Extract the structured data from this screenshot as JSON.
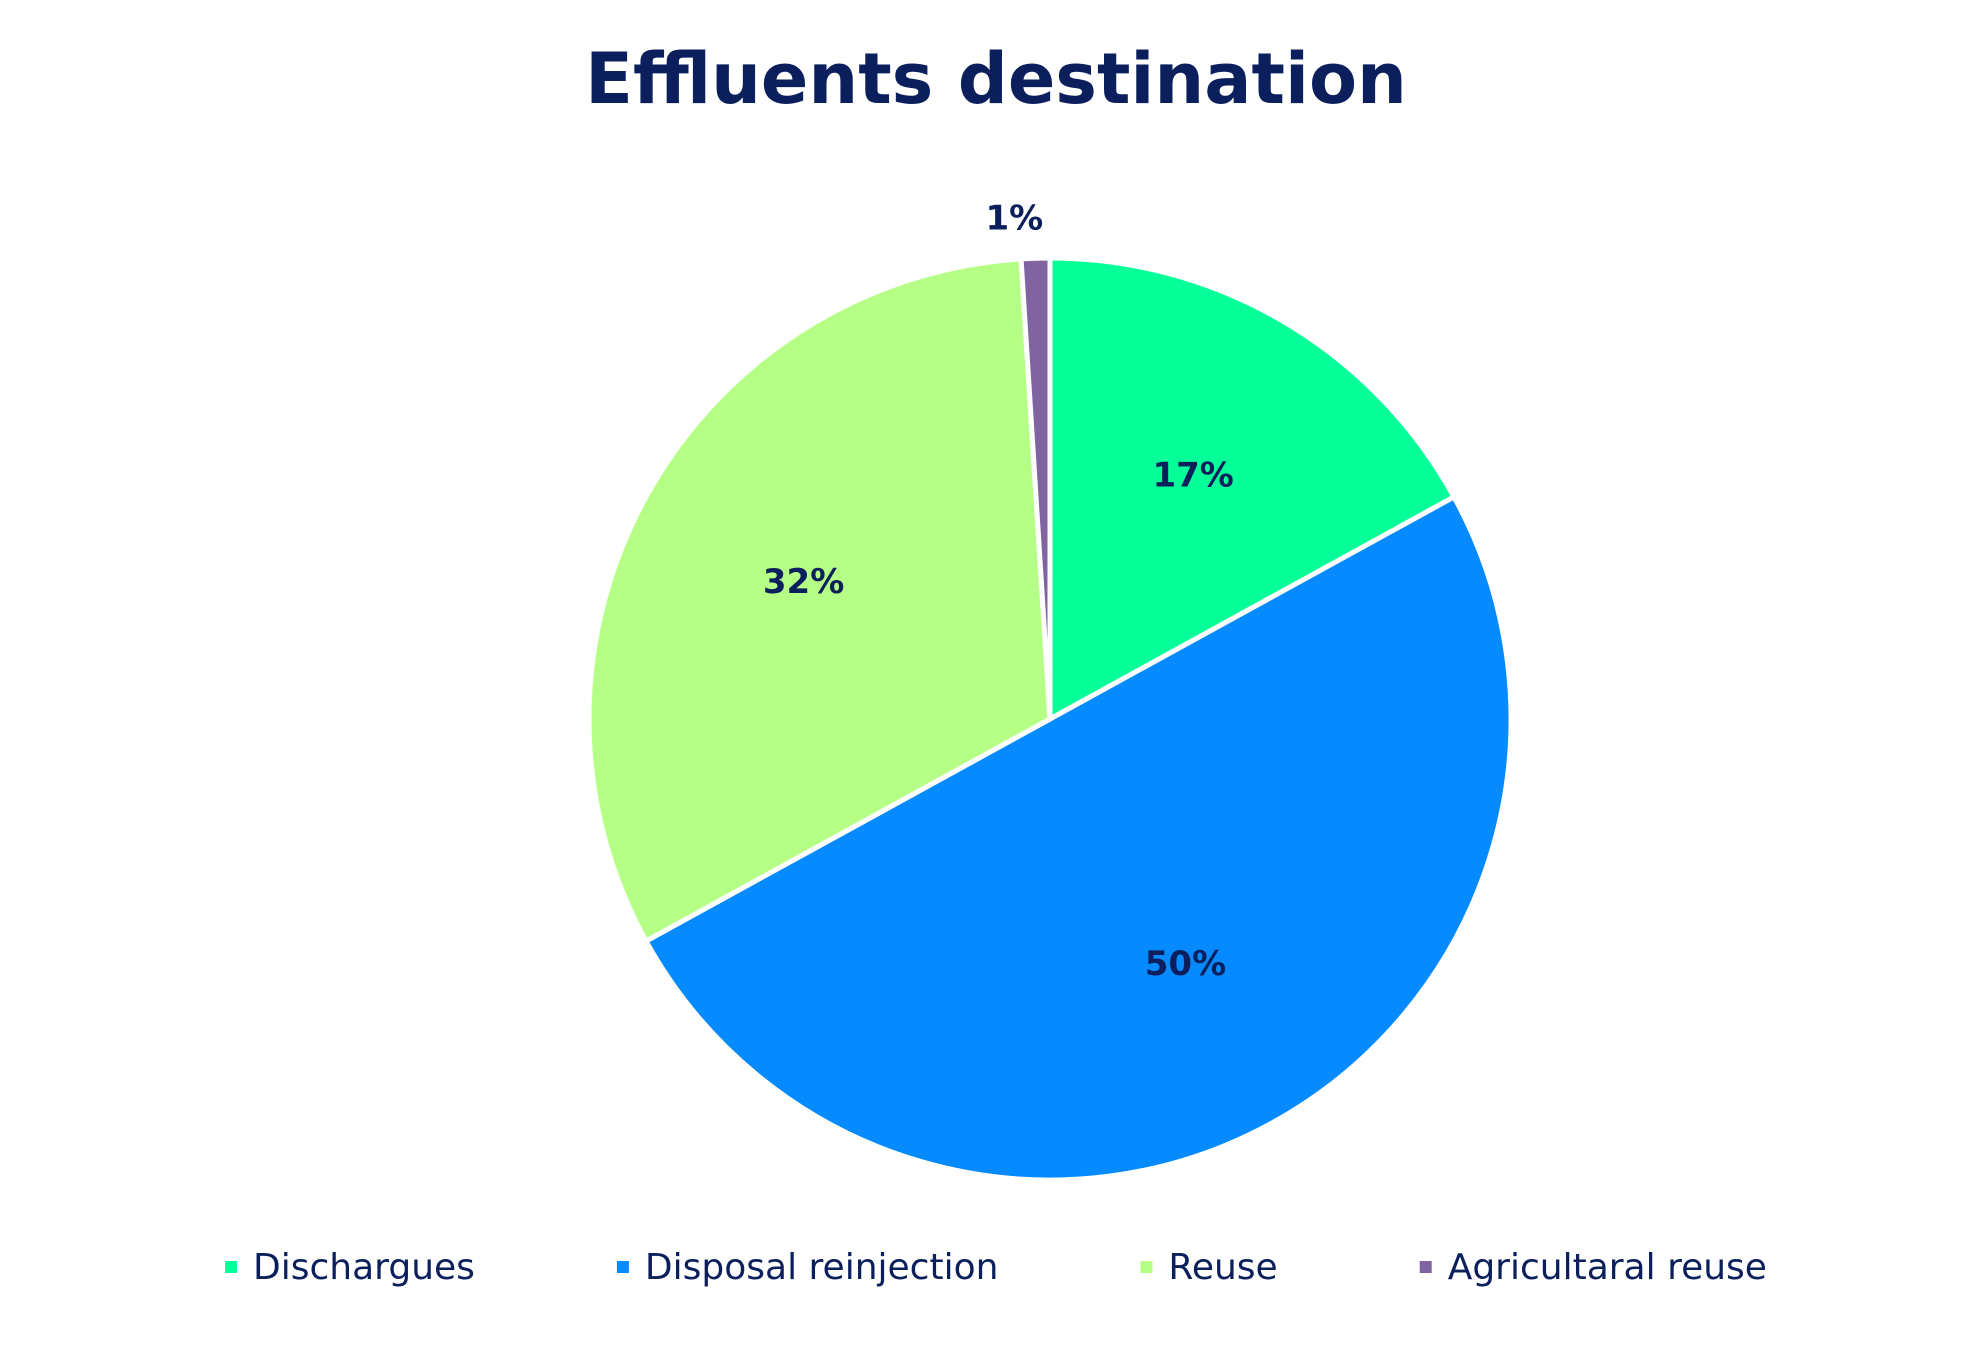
{
  "chart_data": {
    "type": "pie",
    "title": "Effluents destination",
    "categories": [
      "Dischargues",
      "Disposal reinjection",
      "Reuse",
      "Agricultaral reuse"
    ],
    "values": [
      17,
      50,
      32,
      1
    ],
    "value_labels": [
      "17%",
      "50%",
      "32%",
      "1%"
    ],
    "colors": [
      "#05FF98",
      "#058BFF",
      "#B6FF86",
      "#8064A2"
    ],
    "legend": "bottom"
  }
}
